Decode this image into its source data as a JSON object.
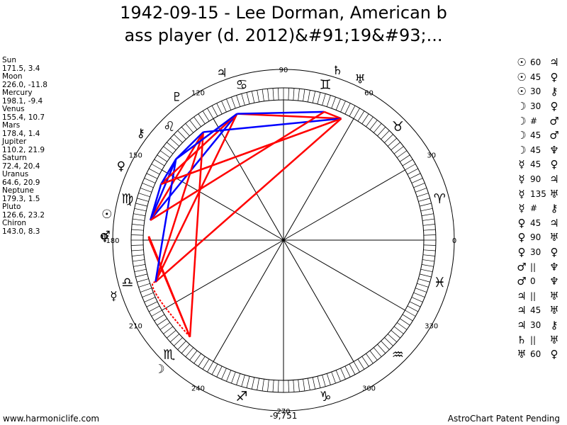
{
  "title": {
    "line1": "1942-09-15 - Lee Dorman, American b",
    "line2": "ass player (d. 2012)&#91;19&#93;..."
  },
  "planets": [
    {
      "name": "Sun",
      "pos": "171.5, 3.4"
    },
    {
      "name": "Moon",
      "pos": "226.0, -11.8"
    },
    {
      "name": "Mercury",
      "pos": "198.1, -9.4"
    },
    {
      "name": "Venus",
      "pos": "155.4, 10.7"
    },
    {
      "name": "Mars",
      "pos": "178.4, 1.4"
    },
    {
      "name": "Jupiter",
      "pos": "110.2, 21.9"
    },
    {
      "name": "Saturn",
      "pos": "72.4, 20.4"
    },
    {
      "name": "Uranus",
      "pos": "64.6, 20.9"
    },
    {
      "name": "Neptune",
      "pos": "179.3, 1.5"
    },
    {
      "name": "Pluto",
      "pos": "126.6, 23.2"
    },
    {
      "name": "Chiron",
      "pos": "143.0, 8.3"
    }
  ],
  "aspects": [
    {
      "p1": "☉",
      "ang": "60",
      "p2": "♃"
    },
    {
      "p1": "☉",
      "ang": "45",
      "p2": "♀"
    },
    {
      "p1": "☉",
      "ang": "30",
      "p2": "⚷"
    },
    {
      "p1": "☽",
      "ang": "30",
      "p2": "♀"
    },
    {
      "p1": "☽",
      "ang": "#",
      "p2": "♂"
    },
    {
      "p1": "☽",
      "ang": "45",
      "p2": "♂"
    },
    {
      "p1": "☽",
      "ang": "45",
      "p2": "♆"
    },
    {
      "p1": "☿",
      "ang": "45",
      "p2": "♀"
    },
    {
      "p1": "☿",
      "ang": "90",
      "p2": "♃"
    },
    {
      "p1": "☿",
      "ang": "135",
      "p2": "♅"
    },
    {
      "p1": "☿",
      "ang": "#",
      "p2": "⚷"
    },
    {
      "p1": "♀",
      "ang": "45",
      "p2": "♃"
    },
    {
      "p1": "♀",
      "ang": "90",
      "p2": "♅"
    },
    {
      "p1": "♀",
      "ang": "30",
      "p2": "♀"
    },
    {
      "p1": "♂",
      "ang": "||",
      "p2": "♆"
    },
    {
      "p1": "♂",
      "ang": "0",
      "p2": "♆"
    },
    {
      "p1": "♃",
      "ang": "||",
      "p2": "♅"
    },
    {
      "p1": "♃",
      "ang": "45",
      "p2": "♅"
    },
    {
      "p1": "♃",
      "ang": "30",
      "p2": "⚷"
    },
    {
      "p1": "♄",
      "ang": "||",
      "p2": "♅"
    },
    {
      "p1": "♅",
      "ang": "60",
      "p2": "♀"
    }
  ],
  "wheel": {
    "degree_labels": [
      "0",
      "30",
      "60",
      "90",
      "120",
      "150",
      "180",
      "210",
      "240",
      "270",
      "300",
      "330"
    ],
    "zodiac_glyphs": [
      "♈",
      "♉",
      "♊",
      "♋",
      "♌",
      "♍",
      "♎",
      "♏",
      "♐",
      "♑",
      "♒",
      "♓"
    ],
    "planet_glyphs": [
      "☉",
      "☽",
      "☿",
      "♀",
      "♂",
      "♃",
      "♄",
      "♅",
      "♆",
      "♇",
      "⚷"
    ],
    "planet_longitudes": [
      171.5,
      226.0,
      198.1,
      155.4,
      178.4,
      110.2,
      72.4,
      64.6,
      179.3,
      126.6,
      143.0
    ],
    "colors": {
      "hard": "#ff0000",
      "soft": "#0000ff"
    }
  },
  "bottom_value": "-9,751",
  "footer": {
    "left": "www.harmoniclife.com",
    "right": "AstroChart Patent Pending"
  }
}
